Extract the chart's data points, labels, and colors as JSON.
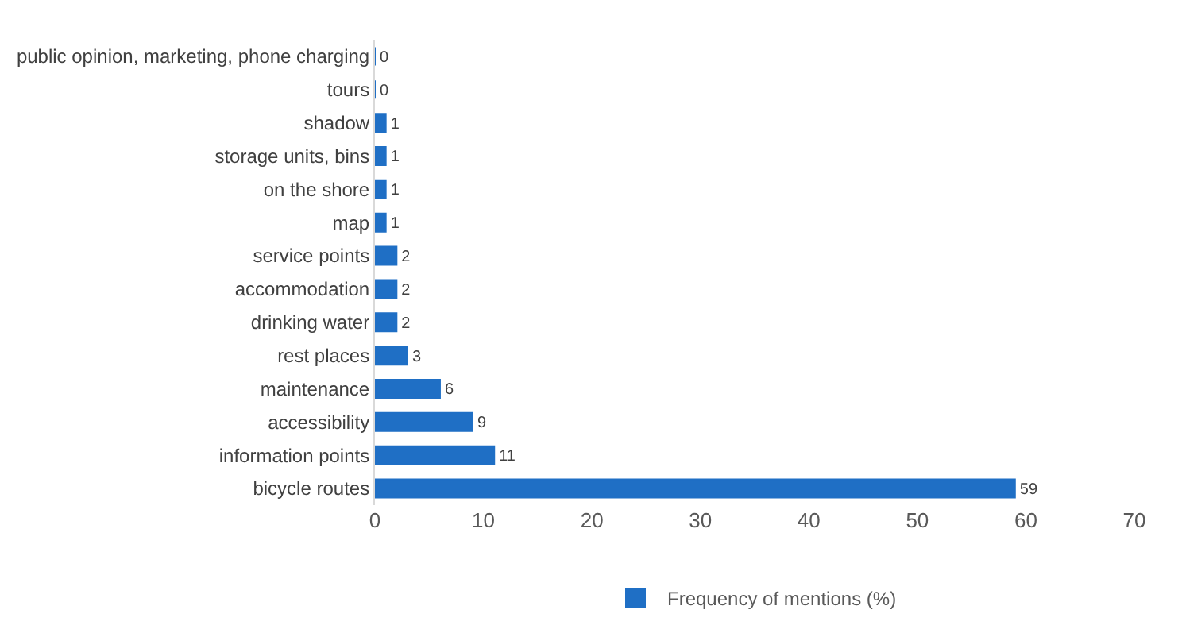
{
  "chart_data": {
    "type": "bar",
    "orientation": "horizontal",
    "categories": [
      "public opinion, marketing, phone charging",
      "tours",
      "shadow",
      "storage units, bins",
      "on the shore",
      "map",
      "service points",
      "accommodation",
      "drinking water",
      "rest places",
      "maintenance",
      "accessibility",
      "information points",
      "bicycle routes"
    ],
    "series": [
      {
        "name": "Frequency of mentions (%)",
        "color": "#1f6fc5",
        "values": [
          0,
          0,
          1,
          1,
          1,
          1,
          2,
          2,
          2,
          3,
          6,
          9,
          11,
          59
        ]
      }
    ],
    "xlim": [
      0,
      70
    ],
    "xticks": [
      0,
      10,
      20,
      30,
      40,
      50,
      60,
      70
    ],
    "data_labels": true,
    "legend": "bottom",
    "grid": false
  }
}
